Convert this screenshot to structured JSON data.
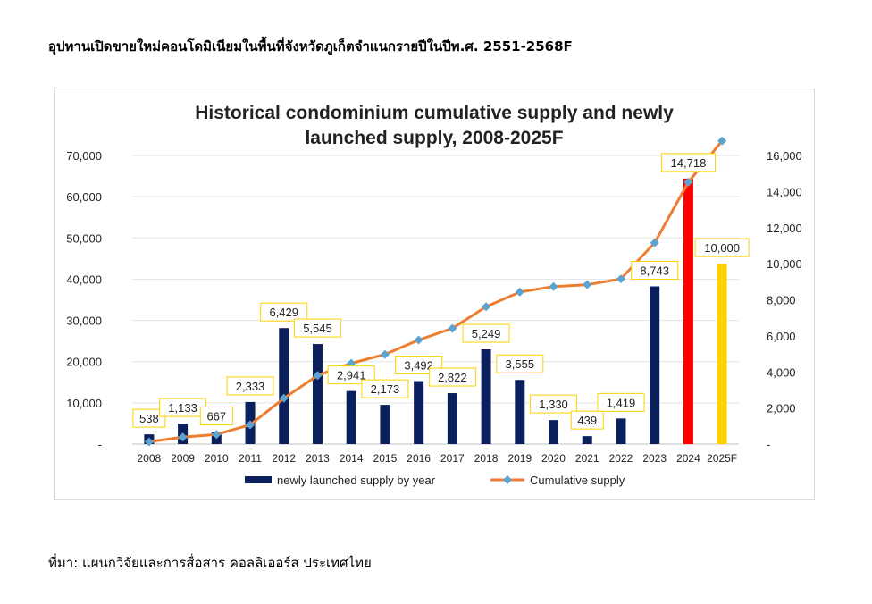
{
  "document": {
    "heading": "อุปทานเปิดขายใหม่คอนโดมิเนียมในพื้นที่จังหวัดภูเก็ตจำแนกรายปีในปีพ.ศ. 2551-2568F",
    "source": "ที่มา: แผนกวิจัยและการสื่อสาร คอลลิเออร์ส ประเทศไทย"
  },
  "chart_data": {
    "type": "bar",
    "title_lines": [
      "Historical condominium cumulative supply and newly",
      "launched supply, 2008-2025F"
    ],
    "categories": [
      "2008",
      "2009",
      "2010",
      "2011",
      "2012",
      "2013",
      "2014",
      "2015",
      "2016",
      "2017",
      "2018",
      "2019",
      "2020",
      "2021",
      "2022",
      "2023",
      "2024",
      "2025F"
    ],
    "series": [
      {
        "name": "newly launched supply by year",
        "kind": "bar",
        "axis": "right",
        "values": [
          538,
          1133,
          667,
          2333,
          6429,
          5545,
          2941,
          2173,
          3492,
          2822,
          5249,
          3555,
          1330,
          439,
          1419,
          8743,
          14718,
          10000
        ],
        "labels": [
          "538",
          "1,133",
          "667",
          "2,333",
          "6,429",
          "5,545",
          "2,941",
          "2,173",
          "3,492",
          "2,822",
          "5,249",
          "3,555",
          "1,330",
          "439",
          "1,419",
          "8,743",
          "14,718",
          "10,000"
        ],
        "color": "#0a1f5c",
        "highlight_colors": {
          "2024": "#ff0000",
          "2025F": "#ffd200"
        }
      },
      {
        "name": "Cumulative supply",
        "kind": "line",
        "axis": "left",
        "values": [
          538,
          1671,
          2338,
          4671,
          11100,
          16645,
          19586,
          21759,
          25251,
          28073,
          33322,
          36877,
          38207,
          38646,
          40065,
          48808,
          63526,
          73526
        ],
        "color": "#ed7d31",
        "marker_color": "#5ba3d0"
      }
    ],
    "y_left": {
      "min": 0,
      "max": 70000,
      "step": 10000,
      "ticks": [
        "-",
        "10,000",
        "20,000",
        "30,000",
        "40,000",
        "50,000",
        "60,000",
        "70,000"
      ]
    },
    "y_right": {
      "min": 0,
      "max": 16000,
      "step": 2000,
      "ticks": [
        "-",
        "2,000",
        "4,000",
        "6,000",
        "8,000",
        "10,000",
        "12,000",
        "14,000",
        "16,000"
      ]
    },
    "grid": true,
    "legend_position": "bottom",
    "label_box_border": "#ffd200"
  }
}
